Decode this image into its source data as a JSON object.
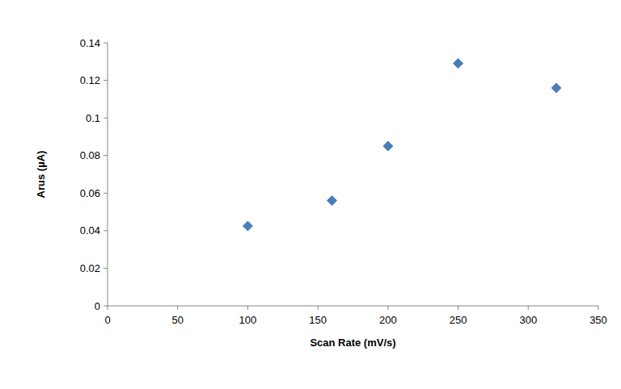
{
  "chart_data": {
    "type": "scatter",
    "x_label": "Scan Rate (mV/s)",
    "y_label": "Arus (µA)",
    "x": [
      100,
      160,
      200,
      250,
      320
    ],
    "values": [
      0.0425,
      0.056,
      0.085,
      0.129,
      0.116
    ],
    "color": "#4a7ebb",
    "marker": "diamond",
    "xlim": [
      0,
      350
    ],
    "xticks": [
      0,
      50,
      100,
      150,
      200,
      250,
      300,
      350
    ],
    "ylim": [
      0,
      0.14
    ],
    "yticks": [
      0,
      0.02,
      0.04,
      0.06,
      0.08,
      0.1,
      0.12,
      0.14
    ],
    "grid": false
  }
}
